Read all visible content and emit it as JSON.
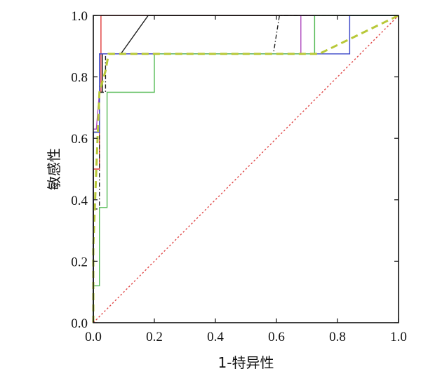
{
  "chart_data": {
    "type": "line",
    "title": "",
    "xlabel": "1-特异性",
    "ylabel": "敏感性",
    "xlim": [
      0,
      1
    ],
    "ylim": [
      0,
      1
    ],
    "xticks": [
      "0.0",
      "0.2",
      "0.4",
      "0.6",
      "0.8",
      "1.0"
    ],
    "yticks": [
      "0.0",
      "0.2",
      "0.4",
      "0.6",
      "0.8",
      "1.0"
    ],
    "grid": false,
    "legend": "none",
    "series": [
      {
        "color": "#e03c3c",
        "dash": "solid",
        "points": [
          [
            0,
            0
          ],
          [
            0,
            0.5
          ],
          [
            0.02,
            0.5
          ],
          [
            0.02,
            0.75
          ],
          [
            0.025,
            0.75
          ],
          [
            0.025,
            1.0
          ],
          [
            1.0,
            1.0
          ]
        ]
      },
      {
        "color": "#222222",
        "dash": "solid",
        "points": [
          [
            0,
            0
          ],
          [
            0,
            0.62
          ],
          [
            0.02,
            0.62
          ],
          [
            0.02,
            0.75
          ],
          [
            0.03,
            0.75
          ],
          [
            0.03,
            0.875
          ],
          [
            0.09,
            0.875
          ],
          [
            0.18,
            1.0
          ],
          [
            1.0,
            1.0
          ]
        ]
      },
      {
        "color": "#222222",
        "dash": "6,3,1.5,3",
        "points": [
          [
            0,
            0
          ],
          [
            0,
            0.37
          ],
          [
            0.02,
            0.37
          ],
          [
            0.02,
            0.75
          ],
          [
            0.04,
            0.75
          ],
          [
            0.04,
            0.875
          ],
          [
            0.07,
            0.875
          ],
          [
            0.59,
            0.875
          ],
          [
            0.61,
            1.0
          ],
          [
            1.0,
            1.0
          ]
        ]
      },
      {
        "color": "#b04cc0",
        "dash": "solid",
        "points": [
          [
            0,
            0.63
          ],
          [
            0.01,
            0.63
          ],
          [
            0.02,
            0.75
          ],
          [
            0.02,
            0.875
          ],
          [
            0.68,
            0.875
          ],
          [
            0.68,
            1.0
          ],
          [
            1.0,
            1.0
          ]
        ]
      },
      {
        "color": "#3a46c8",
        "dash": "solid",
        "points": [
          [
            0,
            0
          ],
          [
            0,
            0.62
          ],
          [
            0.02,
            0.62
          ],
          [
            0.02,
            0.875
          ],
          [
            0.05,
            0.875
          ],
          [
            0.84,
            0.875
          ],
          [
            0.84,
            1.0
          ],
          [
            1.0,
            1.0
          ]
        ]
      },
      {
        "color": "#55bb55",
        "dash": "solid",
        "points": [
          [
            0,
            0
          ],
          [
            0,
            0.12
          ],
          [
            0.02,
            0.12
          ],
          [
            0.02,
            0.375
          ],
          [
            0.045,
            0.375
          ],
          [
            0.045,
            0.75
          ],
          [
            0.2,
            0.75
          ],
          [
            0.2,
            0.875
          ],
          [
            0.725,
            0.875
          ],
          [
            0.725,
            1.0
          ],
          [
            1.0,
            1.0
          ]
        ]
      },
      {
        "color": "#b8c838",
        "dash": "10,6",
        "width": 3,
        "points": [
          [
            0,
            0
          ],
          [
            0,
            0.25
          ],
          [
            0.01,
            0.5
          ],
          [
            0.02,
            0.75
          ],
          [
            0.04,
            0.82
          ],
          [
            0.05,
            0.875
          ],
          [
            0.74,
            0.875
          ],
          [
            1.0,
            1.0
          ]
        ]
      },
      {
        "color": "#e04848",
        "dash": "2.5,3",
        "points": [
          [
            0,
            0
          ],
          [
            1,
            1
          ]
        ]
      }
    ]
  }
}
